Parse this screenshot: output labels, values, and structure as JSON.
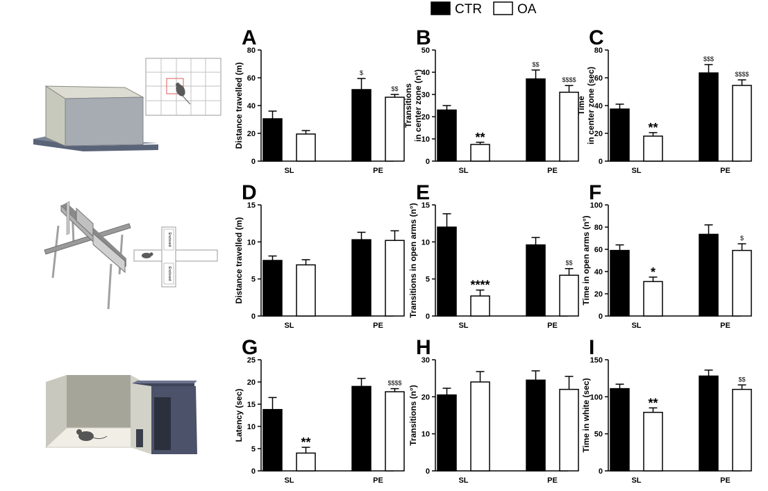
{
  "legend": [
    {
      "label": "CTR",
      "color": "#000000"
    },
    {
      "label": "OA",
      "color": "#ffffff"
    }
  ],
  "illustrations": [
    {
      "name": "open-field-apparatus-illustration"
    },
    {
      "name": "elevated-plus-maze-illustration",
      "labels": [
        "Enclosed",
        "Enclosed"
      ]
    },
    {
      "name": "light-dark-box-illustration"
    }
  ],
  "chart_data": [
    {
      "panel": "A",
      "type": "bar",
      "ylabel": "Distance travelled (m)",
      "ylim": [
        0,
        80
      ],
      "yticks": [
        0,
        20,
        40,
        60,
        80
      ],
      "categories": [
        "SL",
        "PE"
      ],
      "series": [
        {
          "name": "CTR",
          "values": [
            30.5,
            51.5
          ],
          "errors": [
            5.5,
            8
          ]
        },
        {
          "name": "OA",
          "values": [
            19.5,
            46
          ],
          "errors": [
            2.5,
            2
          ]
        }
      ],
      "annotations": [
        {
          "series": "CTR",
          "category": "PE",
          "text": "$"
        },
        {
          "series": "OA",
          "category": "PE",
          "text": "$$"
        }
      ]
    },
    {
      "panel": "B",
      "type": "bar",
      "ylabel": "Transitions in center zone (n°)",
      "ylim": [
        0,
        50
      ],
      "yticks": [
        0,
        10,
        20,
        30,
        40,
        50
      ],
      "categories": [
        "SL",
        "PE"
      ],
      "series": [
        {
          "name": "CTR",
          "values": [
            23,
            37
          ],
          "errors": [
            2,
            4
          ]
        },
        {
          "name": "OA",
          "values": [
            7.5,
            31
          ],
          "errors": [
            1,
            3
          ]
        }
      ],
      "annotations": [
        {
          "series": "OA",
          "category": "SL",
          "text": "**"
        },
        {
          "series": "CTR",
          "category": "PE",
          "text": "$$"
        },
        {
          "series": "OA",
          "category": "PE",
          "text": "$$$$"
        }
      ]
    },
    {
      "panel": "C",
      "type": "bar",
      "ylabel": "Time in center zone (sec)",
      "ylim": [
        0,
        80
      ],
      "yticks": [
        0,
        20,
        40,
        60,
        80
      ],
      "categories": [
        "SL",
        "PE"
      ],
      "series": [
        {
          "name": "CTR",
          "values": [
            37.5,
            63.5
          ],
          "errors": [
            3.5,
            6
          ]
        },
        {
          "name": "OA",
          "values": [
            18,
            54.5
          ],
          "errors": [
            2.5,
            4
          ]
        }
      ],
      "annotations": [
        {
          "series": "OA",
          "category": "SL",
          "text": "**"
        },
        {
          "series": "CTR",
          "category": "PE",
          "text": "$$$"
        },
        {
          "series": "OA",
          "category": "PE",
          "text": "$$$$"
        }
      ]
    },
    {
      "panel": "D",
      "type": "bar",
      "ylabel": "Distance travelled (m)",
      "ylim": [
        0,
        15
      ],
      "yticks": [
        0,
        5,
        10,
        15
      ],
      "categories": [
        "SL",
        "PE"
      ],
      "series": [
        {
          "name": "CTR",
          "values": [
            7.5,
            10.3
          ],
          "errors": [
            0.6,
            1
          ]
        },
        {
          "name": "OA",
          "values": [
            6.9,
            10.2
          ],
          "errors": [
            0.7,
            1.3
          ]
        }
      ],
      "annotations": []
    },
    {
      "panel": "E",
      "type": "bar",
      "ylabel": "Transitions in open arms (n°)",
      "ylim": [
        0,
        15
      ],
      "yticks": [
        0,
        5,
        10,
        15
      ],
      "categories": [
        "SL",
        "PE"
      ],
      "series": [
        {
          "name": "CTR",
          "values": [
            12,
            9.6
          ],
          "errors": [
            1.8,
            1
          ]
        },
        {
          "name": "OA",
          "values": [
            2.7,
            5.5
          ],
          "errors": [
            0.8,
            0.9
          ]
        }
      ],
      "annotations": [
        {
          "series": "OA",
          "category": "SL",
          "text": "****"
        },
        {
          "series": "OA",
          "category": "PE",
          "text": "$$"
        }
      ]
    },
    {
      "panel": "F",
      "type": "bar",
      "ylabel": "Time in open arms (n°)",
      "ylim": [
        0,
        100
      ],
      "yticks": [
        0,
        20,
        40,
        60,
        80,
        100
      ],
      "categories": [
        "SL",
        "PE"
      ],
      "series": [
        {
          "name": "CTR",
          "values": [
            59,
            73.5
          ],
          "errors": [
            5,
            8.5
          ]
        },
        {
          "name": "OA",
          "values": [
            31,
            59
          ],
          "errors": [
            4,
            6
          ]
        }
      ],
      "annotations": [
        {
          "series": "OA",
          "category": "SL",
          "text": "*"
        },
        {
          "series": "OA",
          "category": "PE",
          "text": "$"
        }
      ]
    },
    {
      "panel": "G",
      "type": "bar",
      "ylabel": "Latency (sec)",
      "ylim": [
        0,
        25
      ],
      "yticks": [
        0,
        5,
        10,
        15,
        20,
        25
      ],
      "categories": [
        "SL",
        "PE"
      ],
      "series": [
        {
          "name": "CTR",
          "values": [
            13.8,
            19
          ],
          "errors": [
            2.7,
            1.8
          ]
        },
        {
          "name": "OA",
          "values": [
            4,
            17.8
          ],
          "errors": [
            1.3,
            0.7
          ]
        }
      ],
      "annotations": [
        {
          "series": "OA",
          "category": "SL",
          "text": "**"
        },
        {
          "series": "OA",
          "category": "PE",
          "text": "$$$$"
        }
      ]
    },
    {
      "panel": "H",
      "type": "bar",
      "ylabel": "Transitions (n°)",
      "ylim": [
        0,
        30
      ],
      "yticks": [
        0,
        10,
        20,
        30
      ],
      "categories": [
        "SL",
        "PE"
      ],
      "series": [
        {
          "name": "CTR",
          "values": [
            20.5,
            24.5
          ],
          "errors": [
            1.8,
            2.5
          ]
        },
        {
          "name": "OA",
          "values": [
            24,
            22
          ],
          "errors": [
            2.8,
            3.5
          ]
        }
      ],
      "annotations": []
    },
    {
      "panel": "I",
      "type": "bar",
      "ylabel": "Time in white (sec)",
      "ylim": [
        0,
        150
      ],
      "yticks": [
        0,
        50,
        100,
        150
      ],
      "categories": [
        "SL",
        "PE"
      ],
      "series": [
        {
          "name": "CTR",
          "values": [
            111,
            128
          ],
          "errors": [
            6,
            8
          ]
        },
        {
          "name": "OA",
          "values": [
            79,
            110
          ],
          "errors": [
            6,
            6
          ]
        }
      ],
      "annotations": [
        {
          "series": "OA",
          "category": "SL",
          "text": "**"
        },
        {
          "series": "OA",
          "category": "PE",
          "text": "$$"
        }
      ]
    }
  ]
}
